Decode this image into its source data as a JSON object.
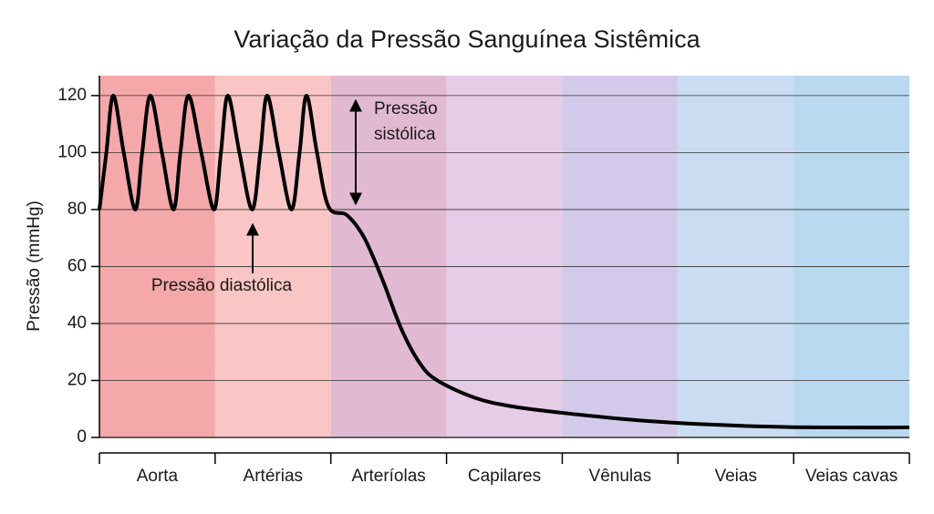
{
  "chart_data": {
    "type": "line",
    "title": "Variação da Pressão Sanguínea Sistêmica",
    "y_label": "Pressão (mmHg)",
    "categories": [
      "Aorta",
      "Artérias",
      "Arteríolas",
      "Capilares",
      "Vênulas",
      "Veias",
      "Veias cavas"
    ],
    "category_colors": [
      "#f5a8aa",
      "#f9c6c5",
      "#e2b9d3",
      "#e6cce7",
      "#d3caeb",
      "#c9dcf2",
      "#b9d9f1"
    ],
    "x": [
      0,
      0.06,
      0.12,
      0.21,
      0.31,
      0.37,
      0.44,
      0.54,
      0.64,
      0.7,
      0.77,
      0.88,
      0.99,
      1.05,
      1.11,
      1.21,
      1.32,
      1.39,
      1.45,
      1.55,
      1.66,
      1.73,
      1.79,
      1.88,
      1.98,
      2.14,
      2.29,
      2.45,
      2.61,
      2.77,
      2.92,
      3.24,
      3.55,
      4.03,
      4.66,
      5.29,
      6.0,
      7.0
    ],
    "values": [
      80,
      100,
      120,
      100,
      80,
      100,
      120,
      100,
      80,
      100,
      120,
      100,
      80,
      100,
      120,
      100,
      80,
      100,
      120,
      100,
      80,
      100,
      120,
      100,
      81,
      78,
      70,
      55,
      38,
      26,
      20,
      14,
      11,
      8.5,
      6,
      4.5,
      3.6,
      3.5
    ],
    "color": "#000000",
    "xlim": [
      0,
      7
    ],
    "ylim": [
      0,
      127
    ],
    "yticks": [
      0,
      20,
      40,
      60,
      80,
      100,
      120
    ],
    "grid": true,
    "annotations": [
      {
        "lines": [
          "Pressão",
          "sistólica"
        ]
      },
      {
        "lines": [
          "Pressão diastólica"
        ]
      }
    ]
  }
}
